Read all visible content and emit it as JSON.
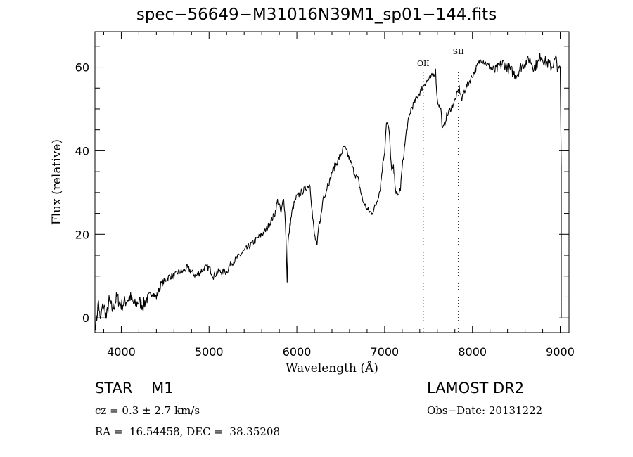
{
  "title": "spec−56649−M31016N39M1_sp01−144.fits",
  "chart_data": {
    "type": "line",
    "title": "spec−56649−M31016N39M1_sp01−144.fits",
    "xlabel": "Wavelength (Å)",
    "ylabel": "Flux (relative)",
    "xlim": [
      3700,
      9100
    ],
    "ylim": [
      -3.5,
      68.5
    ],
    "xticks": [
      4000,
      5000,
      6000,
      7000,
      8000,
      9000
    ],
    "yticks": [
      0,
      20,
      40,
      60
    ],
    "grid": false,
    "legend": "none",
    "line_color": "#000000",
    "annotations": [
      {
        "label": "OII",
        "x": 7440
      },
      {
        "label": "SII",
        "x": 7840
      }
    ],
    "series": [
      {
        "x": [
          3700,
          3720,
          3740,
          3760,
          3780,
          3800,
          3830,
          3860,
          3900,
          3950,
          4000,
          4050,
          4100,
          4150,
          4200,
          4250,
          4300,
          4350,
          4400,
          4450,
          4500,
          4550,
          4600,
          4650,
          4700,
          4750,
          4800,
          4850,
          4900,
          4950,
          5000,
          5050,
          5100,
          5150,
          5200,
          5250,
          5300,
          5350,
          5400,
          5450,
          5500,
          5550,
          5600,
          5650,
          5700,
          5750,
          5780,
          5800,
          5820,
          5850,
          5870,
          5890,
          5900,
          5920,
          5950,
          5980,
          6000,
          6050,
          6100,
          6150,
          6180,
          6200,
          6230,
          6250,
          6280,
          6300,
          6330,
          6350,
          6380,
          6400,
          6450,
          6500,
          6540,
          6560,
          6600,
          6650,
          6700,
          6750,
          6800,
          6850,
          6900,
          6950,
          6980,
          7000,
          7020,
          7050,
          7080,
          7100,
          7130,
          7150,
          7180,
          7200,
          7250,
          7300,
          7350,
          7400,
          7450,
          7500,
          7550,
          7580,
          7600,
          7620,
          7640,
          7660,
          7680,
          7700,
          7750,
          7800,
          7850,
          7880,
          7900,
          7950,
          8000,
          8050,
          8100,
          8150,
          8200,
          8250,
          8300,
          8350,
          8400,
          8450,
          8500,
          8550,
          8600,
          8650,
          8700,
          8750,
          8780,
          8800,
          8850,
          8900,
          8950,
          8980,
          9000
        ],
        "values": [
          -2,
          0,
          4,
          -1,
          2,
          3,
          0,
          4,
          2,
          5,
          3,
          4,
          5,
          3,
          4,
          3,
          5,
          6,
          5,
          8,
          9,
          10,
          10,
          11,
          11,
          12,
          11,
          10,
          11,
          12,
          12,
          10,
          11,
          11,
          11,
          13,
          14,
          15,
          16,
          17,
          18,
          19,
          20,
          21,
          23,
          25,
          28,
          27,
          25,
          29,
          23,
          9,
          18,
          22,
          26,
          28,
          29,
          30,
          31,
          32,
          24,
          20,
          17,
          22,
          25,
          29,
          30,
          32,
          33,
          35,
          37,
          39,
          41,
          40,
          38,
          35,
          33,
          28,
          26,
          25,
          27,
          31,
          37,
          40,
          47,
          45,
          35,
          36,
          30,
          29,
          31,
          36,
          45,
          50,
          52,
          54,
          56,
          57,
          58,
          59,
          52,
          51,
          50,
          45,
          46,
          48,
          50,
          52,
          55,
          52,
          54,
          56,
          58,
          60,
          62,
          61,
          60,
          59,
          60,
          61,
          60,
          59,
          58,
          60,
          61,
          62,
          60,
          61,
          63,
          62,
          61,
          60,
          62,
          59,
          60
        ]
      }
    ]
  },
  "footer": {
    "object_line": "STAR    M1",
    "cz_line": "cz = 0.3 ± 2.7 km/s",
    "coords_line": "RA =  16.54458, DEC =  38.35208",
    "survey": "LAMOST DR2",
    "obs_date": "Obs−Date: 20131222"
  }
}
